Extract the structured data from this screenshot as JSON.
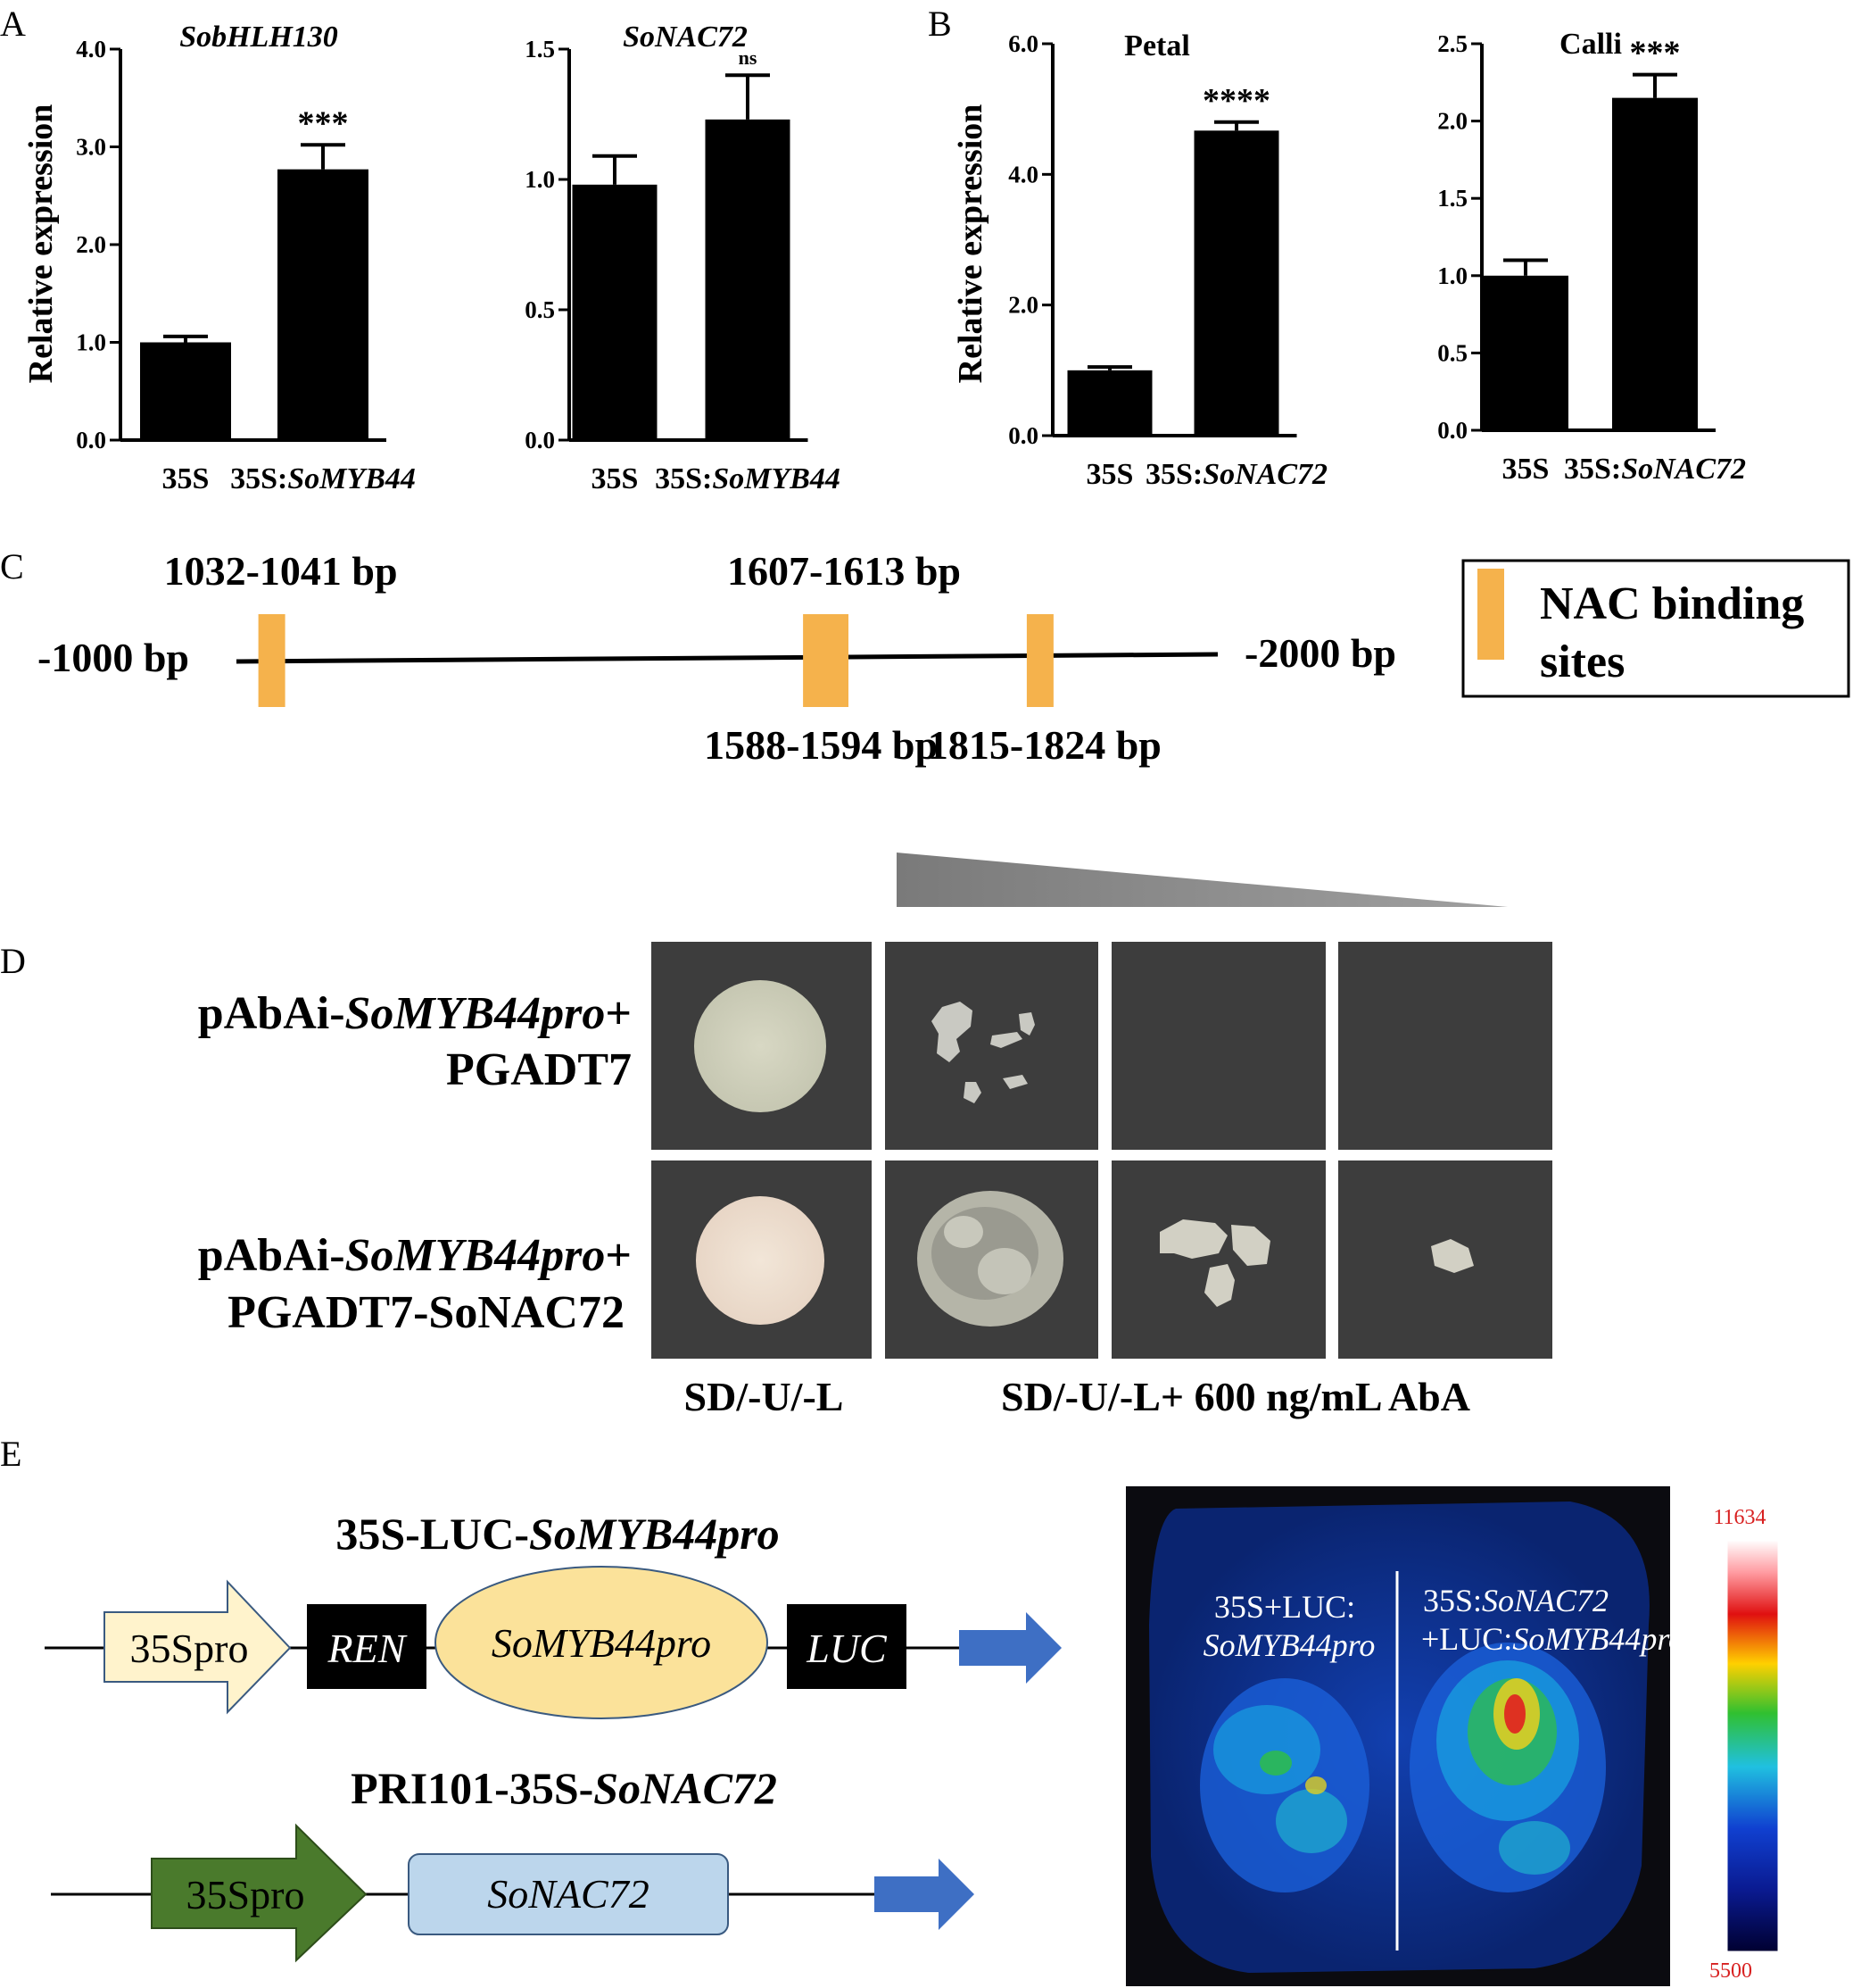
{
  "panels": {
    "a": "A",
    "b": "B",
    "c": "C",
    "d": "D",
    "e": "E"
  },
  "chart_data": [
    {
      "type": "bar",
      "panel": "A",
      "title": "SobHLH130",
      "ylabel": "Relative expression",
      "categories": [
        "35S",
        "35S:SoMYB44"
      ],
      "category_parts": [
        [
          "35S",
          ""
        ],
        [
          "35S:",
          "SoMYB44"
        ]
      ],
      "values": [
        1.0,
        2.77
      ],
      "errors": [
        0.06,
        0.25
      ],
      "significance": [
        "",
        "***"
      ],
      "ylim": [
        0,
        4.0
      ],
      "yticks": [
        "0.0",
        "1.0",
        "2.0",
        "3.0",
        "4.0"
      ]
    },
    {
      "type": "bar",
      "panel": "A",
      "title": "SoNAC72",
      "ylabel": "",
      "categories": [
        "35S",
        "35S:SoMYB44"
      ],
      "category_parts": [
        [
          "35S",
          ""
        ],
        [
          "35S:",
          "SoMYB44"
        ]
      ],
      "values": [
        0.98,
        1.23
      ],
      "errors": [
        0.11,
        0.17
      ],
      "significance": [
        "",
        "ns"
      ],
      "ylim": [
        0,
        1.5
      ],
      "yticks": [
        "0.0",
        "0.5",
        "1.0",
        "1.5"
      ]
    },
    {
      "type": "bar",
      "panel": "B",
      "title": "Petal",
      "ylabel": "Relative expression",
      "categories": [
        "35S",
        "35S:SoNAC72"
      ],
      "category_parts": [
        [
          "35S",
          ""
        ],
        [
          "35S:",
          "SoNAC72"
        ]
      ],
      "values": [
        1.0,
        4.67
      ],
      "errors": [
        0.05,
        0.13
      ],
      "significance": [
        "",
        "****"
      ],
      "ylim": [
        0,
        6.0
      ],
      "yticks": [
        "0.0",
        "2.0",
        "4.0",
        "6.0"
      ]
    },
    {
      "type": "bar",
      "panel": "B",
      "title": "Calli",
      "ylabel": "",
      "categories": [
        "35S",
        "35S:SoNAC72"
      ],
      "category_parts": [
        [
          "35S",
          ""
        ],
        [
          "35S:",
          "SoNAC72"
        ]
      ],
      "values": [
        1.0,
        2.15
      ],
      "errors": [
        0.1,
        0.15
      ],
      "significance": [
        "",
        "***"
      ],
      "ylim": [
        0,
        2.5
      ],
      "yticks": [
        "0.0",
        "0.5",
        "1.0",
        "1.5",
        "2.0",
        "2.5"
      ]
    }
  ],
  "promoter": {
    "start_label": "-1000 bp",
    "end_label": "-2000 bp",
    "start_bp": 1000,
    "end_bp": 2000,
    "sites": [
      {
        "label": "1032-1041 bp",
        "pos": 1036,
        "label_side": "top"
      },
      {
        "label": "1588-1594 bp",
        "pos": 1591,
        "label_side": "bottom"
      },
      {
        "label": "1607-1613 bp",
        "pos": 1610,
        "label_side": "top"
      },
      {
        "label": "1815-1824 bp",
        "pos": 1819,
        "label_side": "bottom"
      }
    ],
    "legend": {
      "line1": "NAC binding",
      "line2": "sites"
    },
    "site_color": "#f5b24c"
  },
  "y1h": {
    "row1": {
      "prefix": "pAbAi-",
      "gene": "SoMYB44pro",
      "suffix": "+",
      "line2": "PGADT7"
    },
    "row2": {
      "prefix": "pAbAi-",
      "gene": "SoMYB44pro",
      "suffix": "+",
      "line2": "PGADT7-SoNAC72"
    },
    "label_left": "SD/-U/-L",
    "label_right": "SD/-U/-L+ 600 ng/mL AbA",
    "panel_color": "#3d3d3d"
  },
  "constructs": {
    "c1_title_prefix": "35S-LUC-",
    "c1_title_gene": "SoMYB44pro",
    "c1_promoter": "35Spro",
    "c1_ren": "REN",
    "c1_pro": "SoMYB44pro",
    "c1_luc": "LUC",
    "c2_title_prefix": "PRI101-35S-",
    "c2_title_gene": "SoNAC72",
    "c2_promoter": "35Spro",
    "c2_gene": "SoNAC72"
  },
  "luc_image": {
    "left_line1": "35S+LUC:",
    "left_line2": "SoMYB44pro",
    "right_line1_prefix": "35S:",
    "right_line1_gene": "SoNAC72",
    "right_line2_prefix": "+LUC:",
    "right_line2_gene": "SoMYB44pro",
    "scale_max": "11634",
    "scale_min": "5500"
  }
}
